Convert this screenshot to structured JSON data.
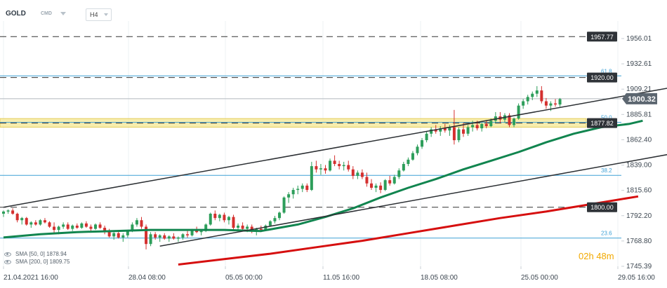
{
  "header": {
    "symbol": "GOLD",
    "type": "CMD",
    "timeframe": "H4"
  },
  "indicators": [
    {
      "label": "SMA",
      "params": "[50, 0]",
      "value": "1878.94"
    },
    {
      "label": "SMA",
      "params": "[200, 0]",
      "value": "1809.75"
    }
  ],
  "countdown": {
    "hours": "02",
    "hours_unit": "h",
    "minutes": "48",
    "minutes_unit": "m"
  },
  "colors": {
    "bull": "#2d9e5a",
    "bear": "#d4302f",
    "sma50": "#11854f",
    "sma200": "#d60f0f",
    "channel": "#2b2f33",
    "fib": "#3ea1d6",
    "zone": "#f6ea9f",
    "zone_border": "#e0c744",
    "current_price_bg": "#5c6670"
  },
  "chart_data": {
    "type": "candlestick",
    "ylim": [
      1745.39,
      1970
    ],
    "yticks": [
      "1956.01",
      "1932.61",
      "1909.21",
      "1885.81",
      "1862.40",
      "1839.00",
      "1815.60",
      "1792.20",
      "1768.80",
      "1745.39"
    ],
    "xticks": [
      "21.04.2021 16:00",
      "28.04 08:00",
      "05.05 00:00",
      "11.05 16:00",
      "18.05 08:00",
      "25.05 00:00",
      "29.05 16:00"
    ],
    "current_price": 1900.32,
    "current_price_label": "1900.32",
    "levels": [
      {
        "label": "1957.77",
        "value": 1957.77,
        "style": "dashed"
      },
      {
        "label": "1920.00",
        "value": 1920.0,
        "style": "dashed"
      },
      {
        "label": "1877.82",
        "value": 1877.82,
        "style": "dashed"
      },
      {
        "label": "1800.00",
        "value": 1800.0,
        "style": "dashed"
      }
    ],
    "fib_levels": [
      {
        "label": "61.8",
        "value": 1921.5
      },
      {
        "label": "50.0",
        "value": 1878.5
      },
      {
        "label": "38.2",
        "value": 1829.5
      },
      {
        "label": "23.6",
        "value": 1771.5
      }
    ],
    "support_zone": [
      1874,
      1882
    ],
    "channel_upper": [
      [
        0,
        1800
      ],
      [
        160,
        1922
      ]
    ],
    "channel_lower": [
      [
        34,
        1764
      ],
      [
        163,
        1863
      ]
    ],
    "candles": [
      [
        1794,
        1797,
        1791,
        1796
      ],
      [
        1796,
        1798,
        1794,
        1797
      ],
      [
        1797,
        1799,
        1793,
        1794
      ],
      [
        1794,
        1795,
        1786,
        1788
      ],
      [
        1788,
        1791,
        1784,
        1790
      ],
      [
        1790,
        1791,
        1783,
        1784
      ],
      [
        1784,
        1787,
        1781,
        1786
      ],
      [
        1786,
        1788,
        1783,
        1784
      ],
      [
        1784,
        1789,
        1783,
        1788
      ],
      [
        1788,
        1790,
        1785,
        1786
      ],
      [
        1786,
        1787,
        1781,
        1782
      ],
      [
        1782,
        1786,
        1776,
        1779
      ],
      [
        1779,
        1783,
        1775,
        1782
      ],
      [
        1782,
        1786,
        1780,
        1784
      ],
      [
        1784,
        1786,
        1779,
        1780
      ],
      [
        1780,
        1784,
        1778,
        1783
      ],
      [
        1783,
        1785,
        1780,
        1781
      ],
      [
        1781,
        1786,
        1780,
        1785
      ],
      [
        1785,
        1787,
        1781,
        1782
      ],
      [
        1782,
        1784,
        1777,
        1780
      ],
      [
        1780,
        1785,
        1779,
        1784
      ],
      [
        1784,
        1786,
        1780,
        1781
      ],
      [
        1781,
        1783,
        1775,
        1777
      ],
      [
        1777,
        1780,
        1772,
        1773
      ],
      [
        1773,
        1777,
        1770,
        1776
      ],
      [
        1776,
        1778,
        1771,
        1772
      ],
      [
        1772,
        1776,
        1768,
        1774
      ],
      [
        1774,
        1779,
        1772,
        1778
      ],
      [
        1778,
        1786,
        1777,
        1784
      ],
      [
        1784,
        1790,
        1782,
        1788
      ],
      [
        1788,
        1791,
        1780,
        1782
      ],
      [
        1782,
        1784,
        1761,
        1766
      ],
      [
        1766,
        1777,
        1764,
        1775
      ],
      [
        1775,
        1777,
        1770,
        1772
      ],
      [
        1772,
        1775,
        1768,
        1774
      ],
      [
        1774,
        1776,
        1770,
        1771
      ],
      [
        1771,
        1774,
        1768,
        1773
      ],
      [
        1773,
        1776,
        1770,
        1771
      ],
      [
        1771,
        1773,
        1768,
        1772
      ],
      [
        1772,
        1776,
        1770,
        1775
      ],
      [
        1775,
        1778,
        1772,
        1774
      ],
      [
        1774,
        1780,
        1773,
        1779
      ],
      [
        1779,
        1782,
        1776,
        1777
      ],
      [
        1777,
        1779,
        1774,
        1778
      ],
      [
        1778,
        1785,
        1777,
        1784
      ],
      [
        1784,
        1795,
        1783,
        1794
      ],
      [
        1794,
        1797,
        1788,
        1790
      ],
      [
        1790,
        1794,
        1787,
        1793
      ],
      [
        1793,
        1795,
        1786,
        1788
      ],
      [
        1788,
        1792,
        1784,
        1791
      ],
      [
        1791,
        1793,
        1779,
        1781
      ],
      [
        1781,
        1785,
        1778,
        1783
      ],
      [
        1783,
        1786,
        1778,
        1780
      ],
      [
        1780,
        1784,
        1777,
        1782
      ],
      [
        1782,
        1784,
        1776,
        1778
      ],
      [
        1778,
        1781,
        1774,
        1780
      ],
      [
        1780,
        1783,
        1777,
        1779
      ],
      [
        1779,
        1784,
        1778,
        1783
      ],
      [
        1783,
        1788,
        1782,
        1787
      ],
      [
        1787,
        1792,
        1785,
        1790
      ],
      [
        1790,
        1796,
        1788,
        1795
      ],
      [
        1795,
        1810,
        1794,
        1809
      ],
      [
        1809,
        1814,
        1804,
        1812
      ],
      [
        1812,
        1818,
        1808,
        1816
      ],
      [
        1816,
        1820,
        1812,
        1817
      ],
      [
        1817,
        1822,
        1814,
        1820
      ],
      [
        1820,
        1822,
        1814,
        1816
      ],
      [
        1816,
        1842,
        1815,
        1838
      ],
      [
        1838,
        1843,
        1832,
        1835
      ],
      [
        1835,
        1840,
        1830,
        1836
      ],
      [
        1836,
        1839,
        1831,
        1834
      ],
      [
        1834,
        1845,
        1833,
        1843
      ],
      [
        1843,
        1848,
        1838,
        1840
      ],
      [
        1840,
        1843,
        1835,
        1838
      ],
      [
        1838,
        1842,
        1834,
        1839
      ],
      [
        1839,
        1843,
        1833,
        1835
      ],
      [
        1835,
        1838,
        1826,
        1829
      ],
      [
        1829,
        1834,
        1826,
        1832
      ],
      [
        1832,
        1835,
        1826,
        1828
      ],
      [
        1828,
        1832,
        1819,
        1822
      ],
      [
        1822,
        1826,
        1816,
        1818
      ],
      [
        1818,
        1822,
        1814,
        1820
      ],
      [
        1820,
        1823,
        1813,
        1816
      ],
      [
        1816,
        1826,
        1815,
        1825
      ],
      [
        1825,
        1829,
        1820,
        1822
      ],
      [
        1822,
        1830,
        1821,
        1828
      ],
      [
        1828,
        1836,
        1826,
        1834
      ],
      [
        1834,
        1842,
        1833,
        1840
      ],
      [
        1840,
        1846,
        1838,
        1844
      ],
      [
        1844,
        1852,
        1843,
        1850
      ],
      [
        1850,
        1858,
        1848,
        1856
      ],
      [
        1856,
        1864,
        1854,
        1862
      ],
      [
        1862,
        1870,
        1860,
        1868
      ],
      [
        1868,
        1874,
        1865,
        1872
      ],
      [
        1872,
        1876,
        1868,
        1870
      ],
      [
        1870,
        1875,
        1866,
        1873
      ],
      [
        1873,
        1877,
        1869,
        1871
      ],
      [
        1871,
        1876,
        1866,
        1874
      ],
      [
        1874,
        1890,
        1858,
        1862
      ],
      [
        1862,
        1874,
        1860,
        1872
      ],
      [
        1872,
        1878,
        1865,
        1868
      ],
      [
        1868,
        1876,
        1866,
        1874
      ],
      [
        1874,
        1880,
        1870,
        1876
      ],
      [
        1876,
        1880,
        1871,
        1873
      ],
      [
        1873,
        1878,
        1870,
        1877
      ],
      [
        1877,
        1880,
        1873,
        1875
      ],
      [
        1875,
        1882,
        1874,
        1880
      ],
      [
        1880,
        1888,
        1878,
        1884
      ],
      [
        1884,
        1888,
        1878,
        1881
      ],
      [
        1881,
        1887,
        1878,
        1885
      ],
      [
        1885,
        1887,
        1874,
        1876
      ],
      [
        1876,
        1883,
        1874,
        1882
      ],
      [
        1882,
        1896,
        1881,
        1894
      ],
      [
        1894,
        1900,
        1891,
        1898
      ],
      [
        1898,
        1904,
        1895,
        1902
      ],
      [
        1902,
        1907,
        1899,
        1905
      ],
      [
        1905,
        1912,
        1902,
        1908
      ],
      [
        1908,
        1912,
        1896,
        1898
      ],
      [
        1898,
        1901,
        1891,
        1894
      ],
      [
        1894,
        1898,
        1889,
        1896
      ],
      [
        1896,
        1900,
        1893,
        1895
      ],
      [
        1895,
        1901,
        1893,
        1900
      ]
    ],
    "sma50": [
      [
        0,
        1772
      ],
      [
        8,
        1775
      ],
      [
        16,
        1777
      ],
      [
        24,
        1778
      ],
      [
        32,
        1779
      ],
      [
        40,
        1779
      ],
      [
        48,
        1779
      ],
      [
        56,
        1778
      ],
      [
        64,
        1784
      ],
      [
        70,
        1791
      ],
      [
        76,
        1799
      ],
      [
        82,
        1809
      ],
      [
        88,
        1818
      ],
      [
        94,
        1826
      ],
      [
        100,
        1835
      ],
      [
        106,
        1843
      ],
      [
        112,
        1851
      ],
      [
        118,
        1860
      ],
      [
        124,
        1868
      ],
      [
        130,
        1874
      ],
      [
        136,
        1877
      ],
      [
        139,
        1880
      ]
    ],
    "sma200": [
      [
        38,
        1747
      ],
      [
        48,
        1752
      ],
      [
        58,
        1757
      ],
      [
        68,
        1763
      ],
      [
        78,
        1769
      ],
      [
        88,
        1776
      ],
      [
        98,
        1783
      ],
      [
        108,
        1790
      ],
      [
        118,
        1796
      ],
      [
        128,
        1803
      ],
      [
        138,
        1810
      ]
    ]
  }
}
